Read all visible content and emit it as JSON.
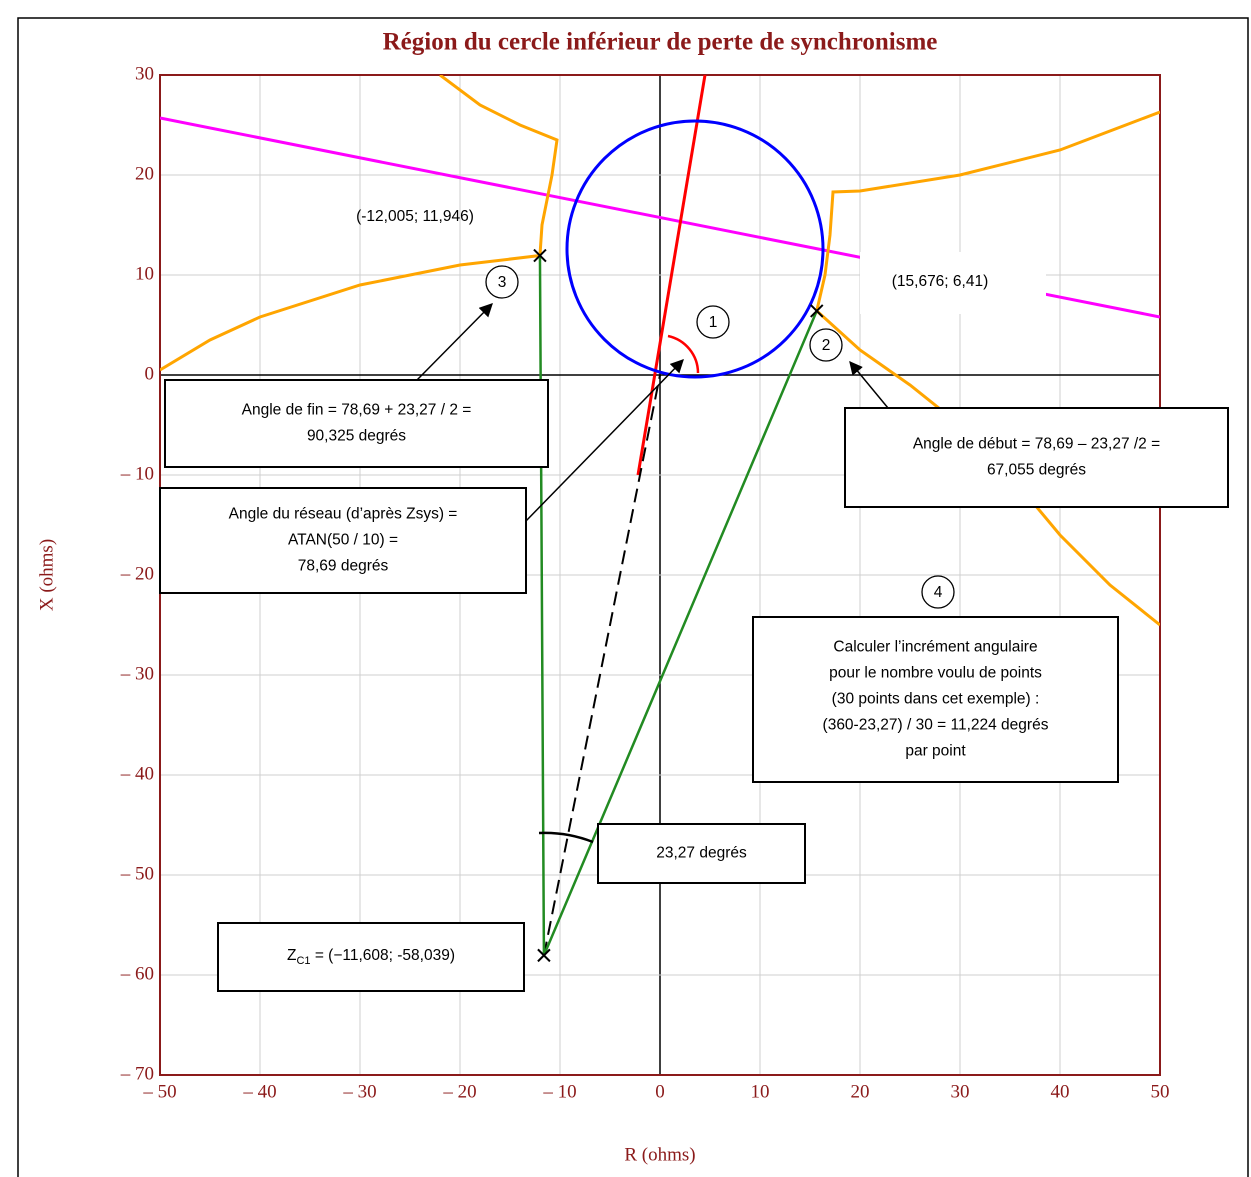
{
  "chart_data": {
    "type": "line",
    "title": "Région du cercle inférieur de perte de synchronisme",
    "xlabel": "R (ohms)",
    "ylabel": "X (ohms)",
    "xlim": [
      -50,
      50
    ],
    "ylim": [
      -70,
      30
    ],
    "xticks": [
      {
        "value": -50,
        "label": "– 50"
      },
      {
        "value": -40,
        "label": "– 40"
      },
      {
        "value": -30,
        "label": "– 30"
      },
      {
        "value": -20,
        "label": "– 20"
      },
      {
        "value": -10,
        "label": "– 10"
      },
      0,
      10,
      20,
      30,
      40,
      50
    ],
    "yticks": [
      30,
      20,
      10,
      0,
      {
        "value": -10,
        "label": "– 10"
      },
      {
        "value": -20,
        "label": "– 20"
      },
      {
        "value": -30,
        "label": "– 30"
      },
      {
        "value": -40,
        "label": "– 40"
      },
      {
        "value": -50,
        "label": "– 50"
      },
      {
        "value": -60,
        "label": "– 60"
      },
      {
        "value": -70,
        "label": "– 70"
      }
    ],
    "grid": true,
    "frame_color": "#8b1a1a",
    "lines": [
      {
        "color": "#ff00ff",
        "x": [
          -50,
          50
        ],
        "y": [
          25.7,
          5.8
        ]
      },
      {
        "color": "#ffa500",
        "x": [
          -22,
          -18,
          -14,
          -10.3,
          -10.8,
          -11.8,
          -12.005
        ],
        "y": [
          30,
          27,
          25,
          23.5,
          20,
          15,
          11.946
        ]
      },
      {
        "color": "#ffa500",
        "x": [
          -50,
          -45,
          -40,
          -30,
          -20,
          -12.005
        ],
        "y": [
          0.5,
          3.5,
          5.8,
          9,
          11,
          11.946
        ]
      },
      {
        "color": "#ffa500",
        "x": [
          15.676,
          16.5,
          17,
          17.3,
          20,
          30,
          40,
          50
        ],
        "y": [
          6.41,
          10,
          14,
          18.3,
          18.4,
          20,
          22.5,
          26.3
        ]
      },
      {
        "color": "#ffa500",
        "x": [
          15.676,
          20,
          25,
          30,
          35,
          40,
          45,
          50
        ],
        "y": [
          6.41,
          2.5,
          -1,
          -5,
          -10,
          -16,
          -21,
          -25
        ]
      },
      {
        "color": "#ff0000",
        "x": [
          -2.2,
          4.5
        ],
        "y": [
          -10,
          30
        ]
      },
      {
        "color": "#000000",
        "dash": true,
        "x": [
          -11.608,
          0
        ],
        "y": [
          -58.039,
          0
        ]
      },
      {
        "color": "#228b22",
        "x": [
          -12.005,
          -11.608,
          15.676
        ],
        "y": [
          11.946,
          -58.039,
          6.41
        ]
      }
    ],
    "circles": [
      {
        "color": "#0000ff",
        "cx": 3.5,
        "cy": 12.6,
        "r": 12.8
      }
    ],
    "points": [
      {
        "x": -12.005,
        "y": 11.946,
        "label": "(-12,005; 11,946)"
      },
      {
        "x": 15.676,
        "y": 6.41,
        "label": "(15,676; 6,41)"
      },
      {
        "x": -11.608,
        "y": -58.039
      }
    ],
    "callouts": [
      "1",
      "2",
      "3",
      "4"
    ],
    "annotations": [
      {
        "lines": [
          "Angle de fin = 78,69 + 23,27 / 2 =",
          "90,325 degrés"
        ]
      },
      {
        "lines": [
          "Angle de début = 78,69 – 23,27 /2 =",
          "67,055 degrés"
        ]
      },
      {
        "lines": [
          "Angle du réseau (d’après Zsys) =",
          "ATAN(50 / 10) =",
          "78,69 degrés"
        ]
      },
      {
        "lines": [
          "Calculer l’incrément angulaire",
          "pour le nombre voulu de points",
          "(30 points dans cet exemple) :",
          "(360-23,27) / 30 = 11,224 degrés",
          "par point"
        ]
      },
      {
        "lines": [
          "23,27 degrés"
        ]
      }
    ],
    "zc1_label": [
      "Z",
      "C1",
      " = (−11,608; -58,039)"
    ]
  }
}
